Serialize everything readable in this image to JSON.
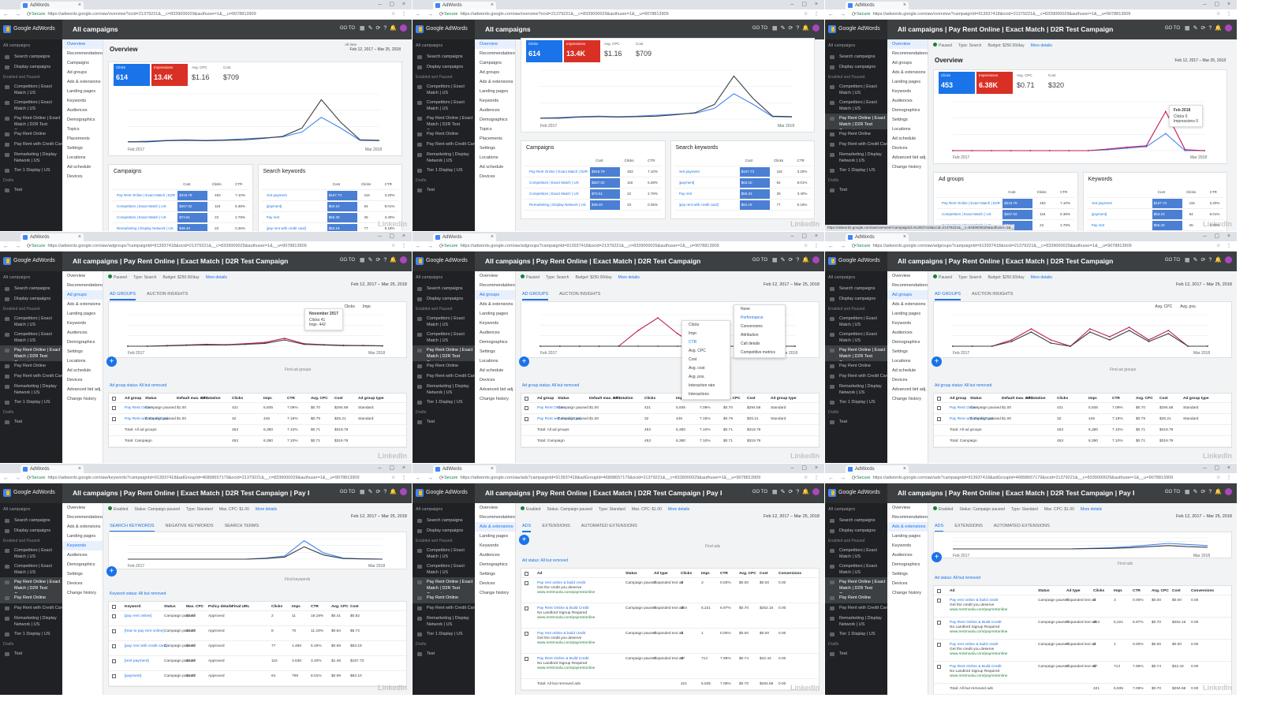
{
  "browser": {
    "tab_title": "AdWords",
    "secure_label": "Secure",
    "urls": [
      "https://adwords.google.com/aw/overview?ocid=21379221&__c=8339000029&authuser=1&__u=9078813909",
      "https://adwords.google.com/aw/overview?ocid=21379221&__c=8339000029&authuser=1&__u=9078813909",
      "https://adwords.google.com/aw/overview?campaignId=913937418&ocid=21379221&__c=8339000029&authuser=1&__u=9078813909",
      "https://adwords.google.com/aw/adgroups?campaignId=913937418&ocid=21379221&__c=8339000029&authuser=1&__u=9078813909",
      "https://adwords.google.com/aw/adgroups?campaignId=913937418&ocid=21379221&__c=8339000029&authuser=1&__u=9078813909",
      "https://adwords.google.com/aw/adgroups?campaignId=913937418&ocid=21379221&__c=8339000029&authuser=1&__u=9078813909",
      "https://adwords.google.com/aw/keywords?campaignId=913937418&adGroupId=46898657179&ocid=21379221&__c=8339000029&authuser=1&__u=9078813909",
      "https://adwords.google.com/aw/ads?campaignId=913937418&adGroupId=46898657179&ocid=21379221&__c=8339000029&authuser=1&__u=9078813909",
      "https://adwords.google.com/aw/ads?campaignId=913937418&adGroupId=46898657179&ocid=21379221&__c=8339000029&authuser=1&__u=9078813909"
    ],
    "status_url": "https://adwords.google.com/aw/overview?campaignId=913937418&ocid=21379221&__c=8339000029&authuser=1&__u=9078813909"
  },
  "app": {
    "brand": "Google AdWords",
    "go_to": "GO TO",
    "watermark": "LinkedIn"
  },
  "breadcrumbs": [
    "All campaigns",
    "All campaigns",
    "All campaigns | Pay Rent Online | Exact Match | D2R Test Campaign",
    "All campaigns | Pay Rent Online | Exact Match | D2R Test Campaign",
    "All campaigns | Pay Rent Online | Exact Match | D2R Test Campaign",
    "All campaigns | Pay Rent Online | Exact Match | D2R Test Campaign",
    "All campaigns | Pay Rent Online | Exact Match | D2R Test Campaign | Pay Rent Online",
    "All campaigns | Pay Rent Online | Exact Match | D2R Test Campaign | Pay Rent Online",
    "All campaigns | Pay Rent Online | Exact Match | D2R Test Campaign | Pay Rent Online"
  ],
  "sidebar": {
    "header": "All campaigns",
    "items": [
      {
        "label": "Search campaigns"
      },
      {
        "label": "Display campaigns"
      },
      {
        "label": "Enabled and Paused",
        "section": true
      },
      {
        "label": "Competitors | Exact Match | US",
        "tall": true
      },
      {
        "label": "Competitors | Exact Match | US",
        "tall": true
      },
      {
        "label": "Pay Rent Online | Exact Match | D2R Test Campaign",
        "tall": true
      },
      {
        "label": "Pay Rent Online"
      },
      {
        "label": "Pay Rent with Credit Card"
      },
      {
        "label": "Remarketing | Display Network | US",
        "tall": true
      },
      {
        "label": "Tier 1 Display | US"
      },
      {
        "label": "Drafts",
        "section": true
      },
      {
        "label": "Test"
      }
    ]
  },
  "page_menus": {
    "account": [
      "Overview",
      "Recommendations",
      "Campaigns",
      "Ad groups",
      "Ads & extensions",
      "Landing pages",
      "Keywords",
      "Audiences",
      "Demographics",
      "Topics",
      "Placements",
      "Settings",
      "Locations",
      "Ad schedule",
      "Devices"
    ],
    "campaign": [
      "Overview",
      "Recommendations",
      "Ad groups",
      "Ads & extensions",
      "Landing pages",
      "Keywords",
      "Audiences",
      "Demographics",
      "Settings",
      "Locations",
      "Ad schedule",
      "Devices",
      "Advanced bid adj.",
      "Change history"
    ],
    "adgroup": [
      "Overview",
      "Recommendations",
      "Ads & extensions",
      "Landing pages",
      "Keywords",
      "Audiences",
      "Demographics",
      "Settings",
      "Devices",
      "Change history"
    ]
  },
  "overview": {
    "title": "Overview",
    "date_range": "Feb 12, 2017 – Mar 25, 2018",
    "all_time": "All time",
    "metrics_account": [
      {
        "label": "Clicks",
        "value": "614"
      },
      {
        "label": "Impressions",
        "value": "13.4K"
      },
      {
        "label": "Avg. CPC",
        "value": "$1.16"
      },
      {
        "label": "Cost",
        "value": "$709"
      }
    ],
    "metrics_campaign": [
      {
        "label": "Clicks",
        "value": "453"
      },
      {
        "label": "Impressions",
        "value": "6.38K"
      },
      {
        "label": "Avg. CPC",
        "value": "$0.71"
      },
      {
        "label": "Cost",
        "value": "$320"
      }
    ],
    "x_start": "Feb 2017",
    "x_end": "Mar 2018",
    "campaigns_title": "Campaigns",
    "keywords_title": "Search keywords",
    "adgroups_title": "Ad groups",
    "keywords2_title": "Keywords",
    "col_cost": "Cost",
    "col_clicks": "Clicks",
    "col_ctr": "CTR",
    "campaign_rows": [
      {
        "name": "Pay Rent Online | Exact Match | D2R Test",
        "cost": "$319.79",
        "clicks": "453",
        "ctr": "7.10%"
      },
      {
        "name": "Competitors | Exact Match | US",
        "cost": "$267.02",
        "clicks": "116",
        "ctr": "5.38%"
      },
      {
        "name": "Competitors | Exact Match | US",
        "cost": "$73.61",
        "clicks": "22",
        "ctr": "2.78%"
      },
      {
        "name": "Remarketing | Display Network | US",
        "cost": "$48.40",
        "clicks": "23",
        "ctr": "0.35%"
      }
    ],
    "keyword_rows": [
      {
        "name": "rent payment",
        "cost": "$167.73",
        "clicks": "116",
        "ctr": "3.20%"
      },
      {
        "name": "[payment]",
        "cost": "$63.10",
        "clicks": "64",
        "ctr": "8.01%"
      },
      {
        "name": "Pay rent",
        "cost": "$56.33",
        "clicks": "25",
        "ctr": "3.40%"
      },
      {
        "name": "[pay rent with credit card]",
        "cost": "$53.19",
        "clicks": "77",
        "ctr": "5.19%"
      }
    ],
    "tooltip_title": "Feb 2018",
    "tooltip_clicks": "Clicks 0",
    "tooltip_impr": "Impressions 0",
    "status_paused": "Paused",
    "type_label": "Type: Search",
    "budget_label": "Budget: $250.00/day",
    "more_details": "More details"
  },
  "adgroups": {
    "tabs": [
      "AD GROUPS",
      "AUCTION INSIGHTS"
    ],
    "filter": "Ad group status: All but removed",
    "find_placeholder": "Find ad groups",
    "metric1": "Clicks",
    "metric2": "Impr.",
    "cols": [
      "Ad group",
      "Status",
      "Default max. CPC",
      "Ad rotation",
      "Clicks",
      "Impr.",
      "CTR",
      "Avg. CPC",
      "Cost",
      "Ad group type"
    ],
    "rows": [
      {
        "name": "Pay Rent Online",
        "status": "Campaign paused",
        "cpc": "$1.00",
        "clicks": "421",
        "impr": "5,935",
        "ctr": "7.09%",
        "avg": "$0.70",
        "cost": "$294.58",
        "type": "Standard"
      },
      {
        "name": "Pay Rent with Credit Card",
        "status": "Campaign paused",
        "cpc": "$1.00",
        "clicks": "32",
        "impr": "445",
        "ctr": "7.19%",
        "avg": "$0.79",
        "cost": "$25.21",
        "type": "Standard"
      }
    ],
    "total_adgroups": {
      "label": "Total: All ad groups",
      "clicks": "453",
      "impr": "6,380",
      "ctr": "7.10%",
      "avg": "$0.71",
      "cost": "$319.79"
    },
    "total_campaign": {
      "label": "Total: Campaign",
      "clicks": "453",
      "impr": "6,380",
      "ctr": "7.10%",
      "avg": "$0.71",
      "cost": "$319.79"
    },
    "tooltip_title": "November 2017",
    "tooltip_clicks": "Clicks 41",
    "tooltip_impr": "Impr. 442",
    "metric_menu": [
      "Clicks",
      "Impr.",
      "CTR",
      "Avg. CPC",
      "Cost",
      "Avg. cost",
      "Avg. pos.",
      "Interaction rate",
      "Interactions"
    ],
    "column_menu": [
      "None",
      "Performance",
      "Conversions",
      "Attribution",
      "Call details",
      "Competitive metrics"
    ],
    "metric1b": "Avg. CPC",
    "metric2b": "Avg. pos."
  },
  "keywords": {
    "status": "Enabled",
    "status2": "Status: Campaign paused",
    "type": "Type: Standard",
    "max_cpc": "Max. CPC: $1.00",
    "tabs": [
      "SEARCH KEYWORDS",
      "NEGATIVE KEYWORDS",
      "SEARCH TERMS"
    ],
    "filter": "Keyword status: All but removed",
    "find_placeholder": "Find keywords",
    "cols": [
      "Keyword",
      "Status",
      "Max. CPC",
      "Policy details",
      "Final URL",
      "Clicks",
      "Impr.",
      "CTR",
      "Avg. CPC",
      "Cost"
    ],
    "rows": [
      {
        "kw": "[pay rent online]",
        "status": "Campaign paused",
        "cpc": "$1.00",
        "policy": "Approved",
        "clicks": "2",
        "impr": "11",
        "ctr": "18.18%",
        "avg": "$0.41",
        "cost": "$0.82"
      },
      {
        "kw": "[how to pay rent online]",
        "status": "Campaign paused",
        "cpc": "$1.00",
        "policy": "Approved",
        "clicks": "8",
        "impr": "70",
        "ctr": "11.43%",
        "avg": "$0.84",
        "cost": "$6.72"
      },
      {
        "kw": "[pay rent with credit card]",
        "status": "Campaign paused",
        "cpc": "$1.00",
        "policy": "Approved",
        "clicks": "77",
        "impr": "1.48K",
        "ctr": "5.19%",
        "avg": "$0.69",
        "cost": "$53.19"
      },
      {
        "kw": "[rent payment]",
        "status": "Campaign paused",
        "cpc": "$1.00",
        "policy": "Approved",
        "clicks": "116",
        "impr": "3.63K",
        "ctr": "3.20%",
        "avg": "$1.45",
        "cost": "$167.73"
      },
      {
        "kw": "[payment]",
        "status": "Campaign paused",
        "cpc": "$1.00",
        "policy": "Approved",
        "clicks": "64",
        "impr": "799",
        "ctr": "8.01%",
        "avg": "$0.99",
        "cost": "$63.10"
      }
    ]
  },
  "ads": {
    "tabs": [
      "ADS",
      "EXTENSIONS",
      "AUTOMATED EXTENSIONS"
    ],
    "filter": "Ad status: All but removed",
    "find_placeholder": "Find ads",
    "cols": [
      "Ad",
      "Status",
      "Ad type",
      "Clicks",
      "Impr.",
      "CTR",
      "Avg. CPC",
      "Cost",
      "Conversions"
    ],
    "rows": [
      {
        "ad": "Pay rent online & build credit",
        "line2": "Get the credit you deserve",
        "url": "www.rentmoola.com/payrentonline",
        "status": "Campaign paused",
        "type": "Expanded text ad",
        "clicks": "0",
        "impr": "3",
        "ctr": "0.00%",
        "avg": "$0.00",
        "cost": "$0.00",
        "conv": "0.00"
      },
      {
        "ad": "Pay Rent Online & Build Credit",
        "line2": "No Landlord Signup Required",
        "url": "www.rentmoola.com/payrentonline",
        "status": "Campaign paused",
        "type": "Expanded text ad",
        "clicks": "364",
        "impr": "5,221",
        "ctr": "6.97%",
        "avg": "$0.70",
        "cost": "$252.15",
        "conv": "0.00"
      },
      {
        "ad": "Pay rent online & build credit",
        "line2": "Get the credit you deserve",
        "url": "www.rentmoola.com/payrentonline",
        "status": "Campaign paused",
        "type": "Expanded text ad",
        "clicks": "0",
        "impr": "1",
        "ctr": "0.00%",
        "avg": "$0.00",
        "cost": "$0.00",
        "conv": "0.00"
      },
      {
        "ad": "Pay Rent Online & Build Credit",
        "line2": "No Landlord Signup Required",
        "url": "www.rentmoola.com/payrentonline",
        "status": "Campaign paused",
        "type": "Expanded text ad",
        "clicks": "57",
        "impr": "714",
        "ctr": "7.98%",
        "avg": "$0.74",
        "cost": "$42.43",
        "conv": "0.00"
      }
    ],
    "total": "Total: All but removed ads",
    "total_vals": {
      "clicks": "421",
      "impr": "5,935",
      "ctr": "7.09%",
      "avg": "$0.70",
      "cost": "$294.58",
      "conv": "0.00"
    }
  },
  "colors": {
    "blue": "#1a73e8",
    "red": "#d93025",
    "chart_blue": "#4285f4",
    "chart_red": "#c2185b",
    "chart_dark": "#3c4043"
  }
}
